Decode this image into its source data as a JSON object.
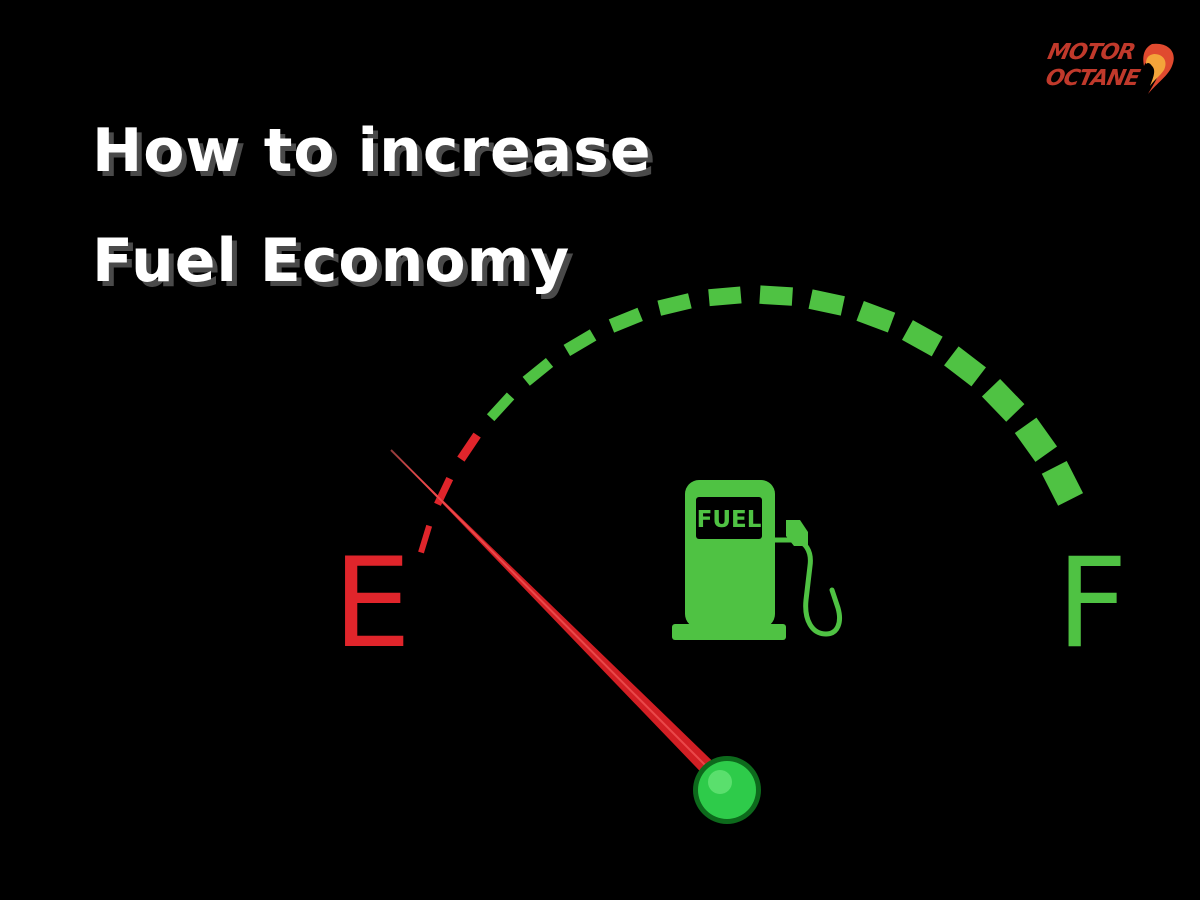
{
  "headline": {
    "line1": "How to increase",
    "line2": "Fuel Economy"
  },
  "logo": {
    "line1": "MOTOR",
    "line2": "OCTANE"
  },
  "gauge": {
    "empty_label": "E",
    "full_label": "F",
    "pump_label": "FUEL",
    "level": 0,
    "colors": {
      "empty": "#e0252b",
      "full": "#4fc243",
      "needle": "#d21f24",
      "hub": "#2ecb4a",
      "background": "#000000",
      "headline": "#ffffff"
    },
    "icons": [
      "fuel-pump-icon"
    ]
  }
}
